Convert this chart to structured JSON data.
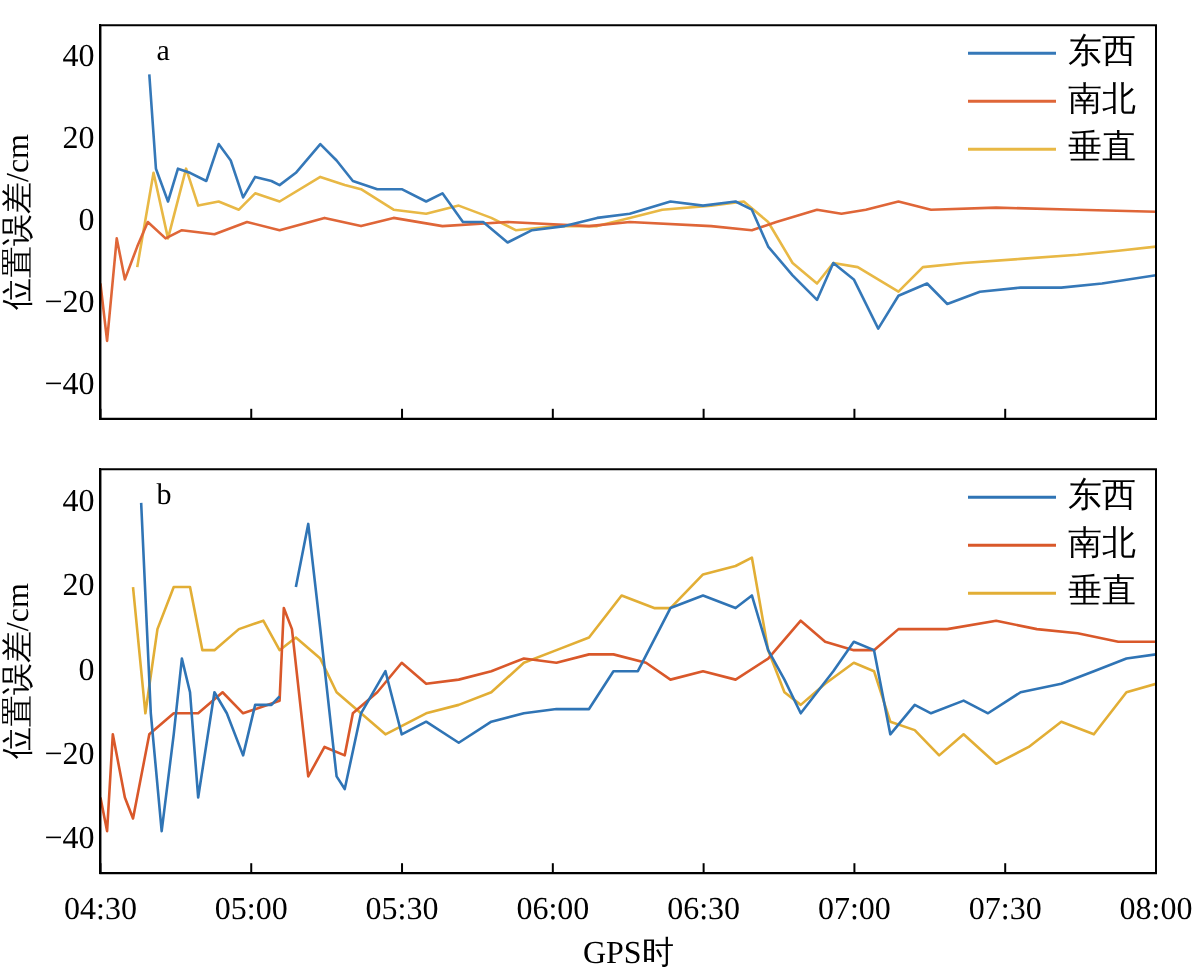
{
  "chart_data": [
    {
      "type": "line",
      "annotations": [
        "a"
      ],
      "ylabel": "位置误差/cm",
      "xlim": [
        4.5,
        8
      ],
      "ylim": [
        -48,
        48
      ],
      "tick_labels": "y",
      "legend": "top right",
      "grid": false,
      "marker": "none",
      "line_style": "solid",
      "xticks": [
        {
          "value": 4.5,
          "label": null
        },
        {
          "value": 5,
          "label": null
        },
        {
          "value": 5.5,
          "label": null
        },
        {
          "value": 6,
          "label": null
        },
        {
          "value": 6.5,
          "label": null
        },
        {
          "value": 7,
          "label": null
        },
        {
          "value": 7.5,
          "label": null
        },
        {
          "value": 8,
          "label": null
        }
      ],
      "yticks": [
        -40,
        -20,
        0,
        20,
        40
      ],
      "series": [
        {
          "name": "东西",
          "color": "#3578b8",
          "x": [
            4.662,
            4.684,
            4.724,
            4.757,
            4.797,
            4.851,
            4.892,
            4.932,
            4.973,
            5.013,
            5.067,
            5.094,
            5.148,
            5.229,
            5.283,
            5.337,
            5.418,
            5.499,
            5.58,
            5.634,
            5.702,
            5.769,
            5.85,
            5.931,
            6.039,
            6.147,
            6.255,
            6.39,
            6.498,
            6.606,
            6.66,
            6.714,
            6.795,
            6.876,
            6.93,
            6.998,
            7.079,
            7.146,
            7.241,
            7.308,
            7.416,
            7.551,
            7.686,
            7.821,
            8.0
          ],
          "values": [
            36,
            13,
            5,
            13,
            12,
            10,
            19,
            15,
            6,
            11,
            10,
            9,
            12,
            19,
            15,
            10,
            8,
            8,
            5,
            7,
            0,
            0,
            -5,
            -2,
            -1,
            1,
            2,
            5,
            4,
            5,
            3,
            -6,
            -13,
            -19,
            -10,
            -14,
            -26,
            -18,
            -15,
            -20,
            -17,
            -16,
            -16,
            -15,
            -13
          ]
        },
        {
          "name": "南北",
          "color": "#df6638",
          "x": [
            4.5,
            4.522,
            4.554,
            4.581,
            4.622,
            4.657,
            4.716,
            4.77,
            4.878,
            4.986,
            5.094,
            5.243,
            5.364,
            5.472,
            5.634,
            5.85,
            6.12,
            6.255,
            6.525,
            6.66,
            6.741,
            6.876,
            6.957,
            7.038,
            7.146,
            7.254,
            7.47,
            7.74,
            8.0
          ],
          "values": [
            -15,
            -29,
            -4,
            -14,
            -6,
            0,
            -4,
            -2,
            -3,
            0,
            -2,
            1,
            -1,
            1,
            -1,
            0,
            -1,
            0,
            -1,
            -2,
            0,
            3,
            2,
            3,
            5,
            3,
            3.5,
            3,
            2.5
          ]
        },
        {
          "name": "垂直",
          "color": "#e8b845",
          "x": [
            4.622,
            4.676,
            4.724,
            4.784,
            4.824,
            4.892,
            4.959,
            5.013,
            5.094,
            5.229,
            5.31,
            5.364,
            5.472,
            5.58,
            5.688,
            5.796,
            5.877,
            6.012,
            6.147,
            6.255,
            6.363,
            6.525,
            6.633,
            6.714,
            6.795,
            6.876,
            6.93,
            7.011,
            7.146,
            7.227,
            7.362,
            7.551,
            7.74,
            7.875,
            8.0
          ],
          "values": [
            -11,
            12,
            -4,
            13,
            4,
            5,
            3,
            7,
            5,
            11,
            9,
            8,
            3,
            2,
            4,
            1,
            -2,
            -1,
            -1,
            1,
            3,
            4,
            5,
            0,
            -10,
            -15,
            -10,
            -11,
            -17,
            -11,
            -10,
            -9,
            -8,
            -7,
            -6
          ]
        }
      ]
    },
    {
      "type": "line",
      "annotations": [
        "b"
      ],
      "ylabel": "位置误差/cm",
      "xlabel": "GPS时",
      "xlim": [
        4.5,
        8
      ],
      "ylim": [
        -48,
        48
      ],
      "legend": "top right",
      "grid": false,
      "marker": "none",
      "line_style": "solid",
      "xticks": [
        {
          "value": 4.5,
          "label": "04:30"
        },
        {
          "value": 5,
          "label": "05:00"
        },
        {
          "value": 5.5,
          "label": "05:30"
        },
        {
          "value": 6,
          "label": "06:00"
        },
        {
          "value": 6.5,
          "label": "06:30"
        },
        {
          "value": 7,
          "label": "07:00"
        },
        {
          "value": 7.5,
          "label": "07:30"
        },
        {
          "value": 8,
          "label": "08:00"
        }
      ],
      "yticks": [
        -40,
        -20,
        0,
        20,
        40
      ],
      "series": [
        {
          "name": "东西",
          "color": "#2f74b5",
          "x": [
            4.635,
            4.667,
            4.703,
            4.743,
            4.77,
            4.797,
            4.824,
            4.878,
            4.919,
            4.973,
            5.013,
            5.067,
            5.094,
            5.108,
            5.121,
            5.148,
            5.189,
            5.229,
            5.283,
            5.31,
            5.364,
            5.445,
            5.499,
            5.58,
            5.688,
            5.796,
            5.904,
            6.012,
            6.12,
            6.201,
            6.282,
            6.39,
            6.498,
            6.606,
            6.66,
            6.714,
            6.768,
            6.822,
            6.876,
            6.93,
            6.998,
            7.065,
            7.119,
            7.2,
            7.254,
            7.362,
            7.443,
            7.551,
            7.686,
            7.794,
            7.902,
            8.0
          ],
          "values": [
            40,
            -10,
            -38,
            -15,
            3,
            -5,
            -30,
            -5,
            -10,
            -20,
            -8,
            -8,
            -6,
            null,
            null,
            20,
            35,
            10,
            -25,
            -28,
            -10,
            0,
            -15,
            -12,
            -17,
            -12,
            -10,
            -9,
            -9,
            0,
            0,
            15,
            18,
            15,
            18,
            5,
            -2,
            -10,
            -5,
            0,
            7,
            5,
            -15,
            -8,
            -10,
            -7,
            -10,
            -5,
            -3,
            0,
            3,
            4
          ]
        },
        {
          "name": "南北",
          "color": "#d9582a",
          "x": [
            4.5,
            4.522,
            4.541,
            4.581,
            4.608,
            4.662,
            4.743,
            4.824,
            4.905,
            4.973,
            5.094,
            5.108,
            5.135,
            5.189,
            5.243,
            5.31,
            5.337,
            5.418,
            5.499,
            5.58,
            5.688,
            5.796,
            5.904,
            6.012,
            6.12,
            6.201,
            6.309,
            6.39,
            6.498,
            6.606,
            6.714,
            6.822,
            6.903,
            6.998,
            7.065,
            7.146,
            7.308,
            7.47,
            7.605,
            7.74,
            7.875,
            8.0
          ],
          "values": [
            -30,
            -38,
            -15,
            -30,
            -35,
            -15,
            -10,
            -10,
            -5,
            -10,
            -7,
            15,
            10,
            -25,
            -18,
            -20,
            -10,
            -5,
            2,
            -3,
            -2,
            0,
            3,
            2,
            4,
            4,
            2,
            -2,
            0,
            -2,
            3,
            12,
            7,
            5,
            5,
            10,
            10,
            12,
            10,
            9,
            7,
            7
          ]
        },
        {
          "name": "垂直",
          "color": "#e2ae35",
          "x": [
            4.608,
            4.649,
            4.689,
            4.743,
            4.797,
            4.838,
            4.878,
            4.959,
            5.04,
            5.094,
            5.148,
            5.229,
            5.283,
            5.364,
            5.445,
            5.58,
            5.688,
            5.796,
            5.904,
            6.012,
            6.12,
            6.228,
            6.336,
            6.39,
            6.498,
            6.606,
            6.66,
            6.714,
            6.768,
            6.822,
            6.903,
            6.998,
            7.065,
            7.119,
            7.2,
            7.281,
            7.362,
            7.47,
            7.578,
            7.686,
            7.794,
            7.902,
            8.0
          ],
          "values": [
            20,
            -10,
            10,
            20,
            20,
            5,
            5,
            10,
            12,
            5,
            8,
            3,
            -5,
            -10,
            -15,
            -10,
            -8,
            -5,
            2,
            5,
            8,
            18,
            15,
            15,
            23,
            25,
            27,
            5,
            -5,
            -8,
            -3,
            2,
            0,
            -12,
            -14,
            -20,
            -15,
            -22,
            -18,
            -12,
            -15,
            -5,
            -3
          ]
        }
      ]
    }
  ]
}
